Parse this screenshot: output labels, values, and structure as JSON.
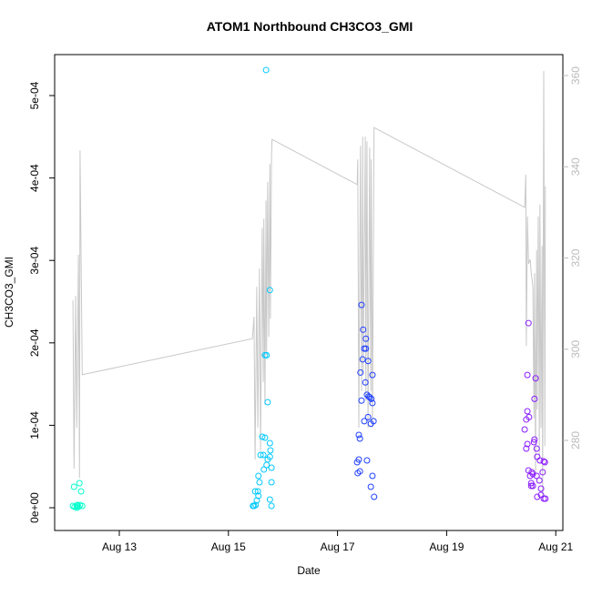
{
  "chart_data": {
    "type": "scatter",
    "title": "ATOM1 Northbound CH3CO3_GMI",
    "x_label": "Date",
    "y_label": "CH3CO3_GMI",
    "xlim": [
      11.815,
      21.13
    ],
    "ylim": [
      -2.76e-05,
      0.0005497
    ],
    "y2lim": [
      260.25,
      364.6
    ],
    "xticks": [
      {
        "value": 13,
        "label": "Aug 13"
      },
      {
        "value": 15,
        "label": "Aug 15"
      },
      {
        "value": 17,
        "label": "Aug 17"
      },
      {
        "value": 19,
        "label": "Aug 19"
      },
      {
        "value": 21,
        "label": "Aug 21"
      }
    ],
    "yticks": [
      {
        "value": 0,
        "label": "0e+00"
      },
      {
        "value": 0.0001,
        "label": "1e-04"
      },
      {
        "value": 0.0002,
        "label": "2e-04"
      },
      {
        "value": 0.0003,
        "label": "3e-04"
      },
      {
        "value": 0.0004,
        "label": "4e-04"
      },
      {
        "value": 0.0005,
        "label": "5e-04"
      }
    ],
    "y2ticks": [
      280,
      300,
      320,
      340,
      360
    ],
    "points": {
      "x": [
        12.15,
        12.18,
        12.22,
        12.25,
        12.28,
        12.32,
        12.17,
        12.27,
        12.3,
        12.22,
        12.23,
        15.69,
        15.76,
        15.67,
        15.7,
        15.72,
        15.62,
        15.67,
        15.76,
        15.77,
        15.76,
        15.59,
        15.64,
        15.72,
        15.79,
        15.65,
        15.7,
        15.55,
        15.57,
        15.79,
        15.49,
        15.54,
        15.55,
        15.52,
        15.5,
        15.47,
        15.45,
        15.76,
        15.79,
        17.44,
        17.47,
        17.52,
        17.49,
        17.52,
        17.46,
        17.56,
        17.42,
        17.64,
        17.51,
        17.54,
        17.57,
        17.59,
        17.62,
        17.44,
        17.64,
        17.56,
        17.66,
        17.49,
        17.61,
        17.39,
        17.41,
        17.39,
        17.36,
        17.54,
        17.41,
        17.37,
        17.64,
        17.61,
        17.67,
        20.5,
        20.48,
        20.63,
        20.61,
        20.48,
        20.51,
        20.46,
        20.43,
        20.61,
        20.6,
        20.48,
        20.46,
        20.65,
        20.66,
        20.78,
        20.8,
        20.71,
        20.5,
        20.56,
        20.58,
        20.76,
        20.53,
        20.65,
        20.55,
        20.7,
        20.55,
        20.58,
        20.73,
        20.73,
        20.66,
        20.78,
        20.81
      ],
      "values": [
        2.2e-06,
        1.1e-06,
        2.2e-06,
        1.1e-06,
        3.3e-06,
        2.2e-06,
        2.54e-05,
        2.98e-05,
        1.99e-05,
        0,
        3.3e-06,
        0.000531,
        0.000264,
        0.000185,
        0.000185,
        0.000128,
        8.61e-05,
        8.5e-05,
        7.84e-05,
        6.95e-05,
        6.18e-05,
        6.4e-05,
        6.4e-05,
        5.85e-05,
        4.86e-05,
        4.64e-05,
        5.19e-05,
        3.86e-05,
        3.09e-05,
        3.09e-05,
        1.99e-05,
        1.99e-05,
        1.43e-05,
        8.8e-06,
        3.3e-06,
        2.2e-06,
        2.2e-06,
        9.9e-06,
        2.2e-06,
        0.000246,
        0.000216,
        0.000205,
        0.000193,
        0.000193,
        0.00018,
        0.000178,
        0.000164,
        0.000161,
        0.000152,
        0.000137,
        0.000135,
        0.000134,
        0.000132,
        0.00013,
        0.000127,
        0.00011,
        0.000105,
        0.000105,
        0.000102,
        8.83e-05,
        8.39e-05,
        5.85e-05,
        5.52e-05,
        5.74e-05,
        4.42e-05,
        4.2e-05,
        3.86e-05,
        2.54e-05,
        1.32e-05,
        0.000224,
        0.000161,
        0.000157,
        0.000132,
        0.000117,
        0.00011,
        0.000107,
        9.49e-05,
        8.28e-05,
        7.95e-05,
        7.73e-05,
        7.17e-05,
        7.17e-05,
        6.18e-05,
        5.63e-05,
        5.52e-05,
        5.74e-05,
        4.53e-05,
        4.31e-05,
        4.09e-05,
        4.31e-05,
        3.86e-05,
        3.86e-05,
        2.98e-05,
        3.31e-05,
        2.65e-05,
        2.65e-05,
        2.32e-05,
        1.55e-05,
        1.32e-05,
        1.1e-05,
        1.1e-05
      ],
      "colors": [
        "#00ffcc",
        "#00ffcc",
        "#00ffcc",
        "#00ffcc",
        "#00ffcc",
        "#00ffcc",
        "#00ffcc",
        "#00ffcc",
        "#00ffcc",
        "#00ffcc",
        "#00ffcc",
        "#00c8ff",
        "#00c8ff",
        "#00c8ff",
        "#00c8ff",
        "#00c8ff",
        "#00c8ff",
        "#00c8ff",
        "#00c8ff",
        "#00c8ff",
        "#00c8ff",
        "#00c8ff",
        "#00c8ff",
        "#00c8ff",
        "#00c8ff",
        "#00c8ff",
        "#00c8ff",
        "#00c8ff",
        "#00c8ff",
        "#00c8ff",
        "#00c8ff",
        "#00c8ff",
        "#00c8ff",
        "#00c8ff",
        "#00c8ff",
        "#00c8ff",
        "#00c8ff",
        "#00c8ff",
        "#00c8ff",
        "#2040ff",
        "#2040ff",
        "#2040ff",
        "#2040ff",
        "#2040ff",
        "#2040ff",
        "#2040ff",
        "#2040ff",
        "#2040ff",
        "#2040ff",
        "#2040ff",
        "#2040ff",
        "#2040ff",
        "#2040ff",
        "#2040ff",
        "#2040ff",
        "#2040ff",
        "#2040ff",
        "#2040ff",
        "#2040ff",
        "#2040ff",
        "#2040ff",
        "#2040ff",
        "#2040ff",
        "#2040ff",
        "#2040ff",
        "#2040ff",
        "#2040ff",
        "#2040ff",
        "#2040ff",
        "#8a1cff",
        "#8a1cff",
        "#8a1cff",
        "#8a1cff",
        "#8a1cff",
        "#8a1cff",
        "#8a1cff",
        "#8a1cff",
        "#8a1cff",
        "#8a1cff",
        "#8a1cff",
        "#8a1cff",
        "#8a1cff",
        "#8a1cff",
        "#8a1cff",
        "#8a1cff",
        "#8a1cff",
        "#8a1cff",
        "#8a1cff",
        "#8a1cff",
        "#8a1cff",
        "#8a1cff",
        "#8a1cff",
        "#8a1cff",
        "#8a1cff",
        "#8a1cff",
        "#8a1cff",
        "#8a1cff",
        "#8a1cff",
        "#8a1cff",
        "#8a1cff",
        "#8a1cff"
      ]
    },
    "line": {
      "axis": "y2",
      "color": "#c8c8c8",
      "x": [
        12.15,
        12.17,
        12.2,
        12.22,
        12.25,
        12.27,
        12.28,
        12.32,
        15.44,
        15.47,
        15.49,
        15.52,
        15.54,
        15.57,
        15.59,
        15.62,
        15.64,
        15.65,
        15.67,
        15.69,
        15.7,
        15.72,
        15.74,
        15.76,
        15.77,
        15.79,
        15.8,
        17.36,
        17.37,
        17.39,
        17.42,
        17.44,
        17.46,
        17.47,
        17.51,
        17.52,
        17.54,
        17.56,
        17.59,
        17.61,
        17.62,
        17.64,
        17.67,
        20.43,
        20.45,
        20.46,
        20.48,
        20.5,
        20.53,
        20.55,
        20.58,
        20.6,
        20.61,
        20.63,
        20.65,
        20.66,
        20.68,
        20.7,
        20.71,
        20.73,
        20.75,
        20.76,
        20.78,
        20.8,
        20.81
      ],
      "values": [
        310.7,
        273.8,
        311.7,
        282.8,
        320.7,
        271.8,
        343.6,
        294.4,
        302.3,
        307.1,
        275.8,
        313.7,
        282.8,
        317.7,
        277.8,
        326.6,
        292.8,
        328.6,
        287.8,
        332.6,
        298.8,
        336.7,
        302.7,
        340.6,
        306.7,
        342.2,
        346.0,
        336.1,
        341.6,
        282.8,
        344.6,
        290.8,
        346.6,
        294.8,
        346.6,
        288.8,
        345.6,
        282.8,
        344.2,
        290.8,
        341.6,
        282.8,
        348.6,
        331.1,
        338.3,
        300.7,
        329.1,
        318.7,
        319.7,
        316.7,
        313.7,
        284.8,
        316.7,
        272.8,
        321.7,
        286.8,
        329.1,
        276.8,
        331.7,
        282.8,
        322.7,
        266.8,
        361.0,
        278.8,
        335.7
      ]
    }
  }
}
